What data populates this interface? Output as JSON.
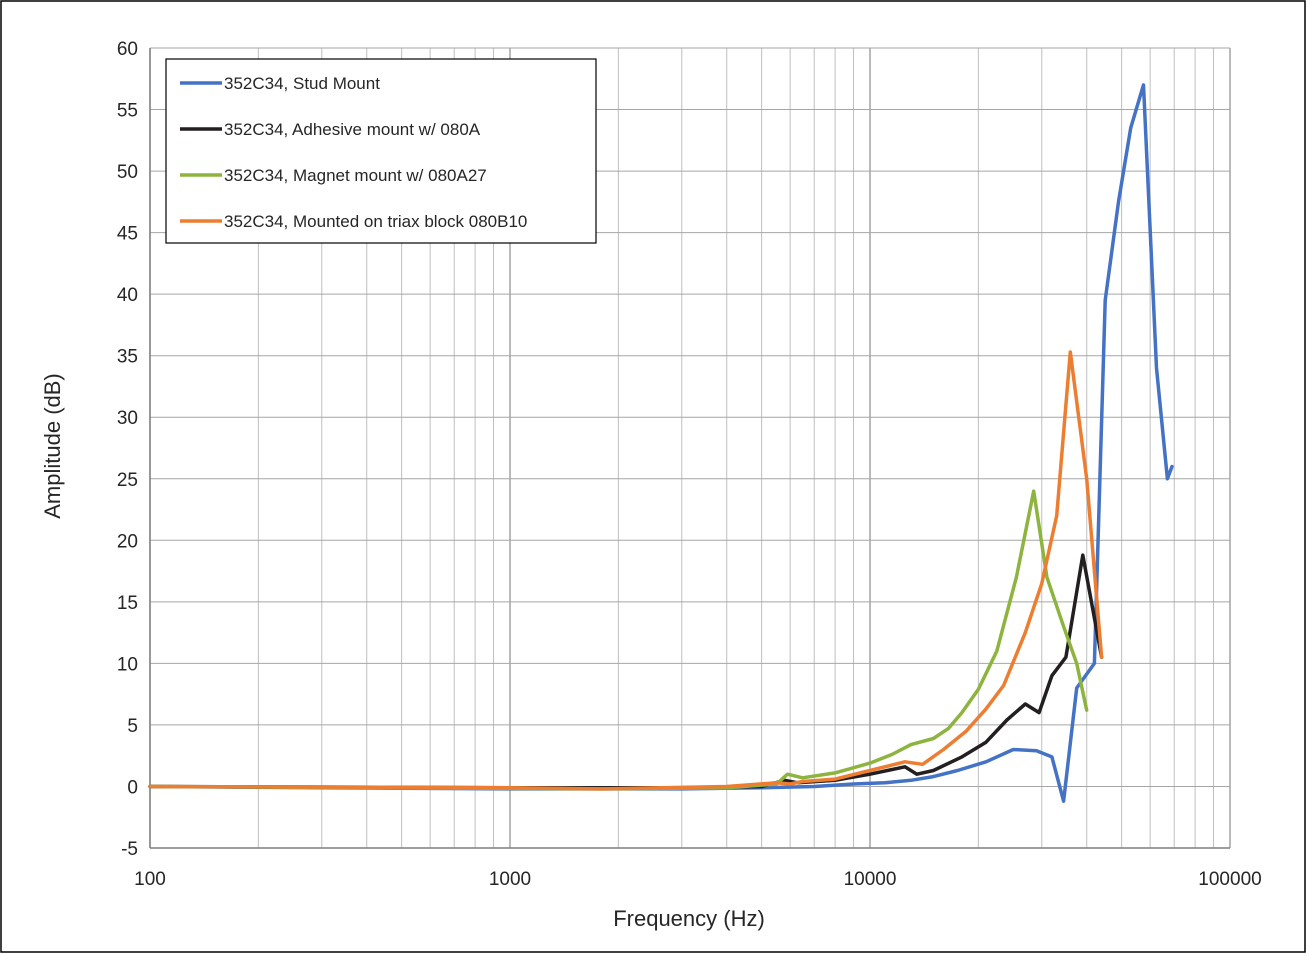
{
  "chart_data": {
    "type": "line",
    "xlabel": "Frequency (Hz)",
    "ylabel": "Amplitude (dB)",
    "x_scale": "log",
    "xlim": [
      100,
      100000
    ],
    "ylim": [
      -5,
      60
    ],
    "x_ticks": [
      100,
      1000,
      10000,
      100000
    ],
    "x_tick_labels": [
      "100",
      "1000",
      "10000",
      "100000"
    ],
    "y_ticks": [
      -5,
      0,
      5,
      10,
      15,
      20,
      25,
      30,
      35,
      40,
      45,
      50,
      55,
      60
    ],
    "y_tick_labels": [
      "-5",
      "0",
      "5",
      "10",
      "15",
      "20",
      "25",
      "30",
      "35",
      "40",
      "45",
      "50",
      "55",
      "60"
    ],
    "grid": true,
    "legend_position": "top-left",
    "series": [
      {
        "name": "352C34, Stud Mount",
        "color": "#4472C4",
        "points": [
          [
            100,
            0
          ],
          [
            300,
            -0.1
          ],
          [
            1000,
            -0.2
          ],
          [
            3000,
            -0.2
          ],
          [
            5000,
            -0.1
          ],
          [
            7000,
            0
          ],
          [
            9000,
            0.2
          ],
          [
            11000,
            0.3
          ],
          [
            13000,
            0.5
          ],
          [
            15000,
            0.8
          ],
          [
            17500,
            1.3
          ],
          [
            21000,
            2.0
          ],
          [
            25000,
            3.0
          ],
          [
            29000,
            2.9
          ],
          [
            32000,
            2.4
          ],
          [
            34500,
            -1.2
          ],
          [
            37500,
            8.0
          ],
          [
            42000,
            10.0
          ],
          [
            45000,
            39.5
          ],
          [
            49000,
            47.5
          ],
          [
            53000,
            53.5
          ],
          [
            57500,
            57.0
          ],
          [
            62500,
            34.0
          ],
          [
            67000,
            25.0
          ],
          [
            69000,
            26.0
          ]
        ]
      },
      {
        "name": "352C34, Adhesive mount w/ 080A",
        "color": "#231F20",
        "points": [
          [
            100,
            0
          ],
          [
            1000,
            -0.1
          ],
          [
            3000,
            -0.1
          ],
          [
            5000,
            0
          ],
          [
            5800,
            0.5
          ],
          [
            6300,
            0.3
          ],
          [
            8000,
            0.5
          ],
          [
            10000,
            1.0
          ],
          [
            12500,
            1.6
          ],
          [
            13500,
            1.0
          ],
          [
            15000,
            1.3
          ],
          [
            18000,
            2.4
          ],
          [
            21000,
            3.6
          ],
          [
            24000,
            5.4
          ],
          [
            27000,
            6.7
          ],
          [
            29500,
            6.0
          ],
          [
            32000,
            9.0
          ],
          [
            35000,
            10.5
          ],
          [
            39000,
            18.8
          ],
          [
            44000,
            10.5
          ]
        ]
      },
      {
        "name": "352C34, Magnet mount w/ 080A27",
        "color": "#8DB43E",
        "points": [
          [
            100,
            0
          ],
          [
            1800,
            -0.2
          ],
          [
            4000,
            -0.1
          ],
          [
            5500,
            0.2
          ],
          [
            5900,
            1.0
          ],
          [
            6500,
            0.7
          ],
          [
            8000,
            1.1
          ],
          [
            10000,
            1.9
          ],
          [
            11500,
            2.6
          ],
          [
            13000,
            3.4
          ],
          [
            15000,
            3.9
          ],
          [
            16500,
            4.7
          ],
          [
            18000,
            6.0
          ],
          [
            20000,
            7.9
          ],
          [
            22500,
            11.0
          ],
          [
            25500,
            17.0
          ],
          [
            28500,
            24.0
          ],
          [
            31000,
            17.0
          ],
          [
            34500,
            13.0
          ],
          [
            37500,
            10.0
          ],
          [
            40000,
            6.2
          ]
        ]
      },
      {
        "name": "352C34, Mounted on triax block 080B10",
        "color": "#ED7D31",
        "points": [
          [
            100,
            0
          ],
          [
            1000,
            -0.1
          ],
          [
            1800,
            -0.2
          ],
          [
            4000,
            0
          ],
          [
            5500,
            0.3
          ],
          [
            6000,
            0.2
          ],
          [
            6500,
            0.4
          ],
          [
            8000,
            0.6
          ],
          [
            10000,
            1.3
          ],
          [
            12500,
            2.0
          ],
          [
            14000,
            1.8
          ],
          [
            16000,
            3.0
          ],
          [
            18500,
            4.5
          ],
          [
            21000,
            6.3
          ],
          [
            23500,
            8.2
          ],
          [
            27000,
            12.5
          ],
          [
            30000,
            16.5
          ],
          [
            33000,
            22.0
          ],
          [
            36000,
            35.3
          ],
          [
            40000,
            25.0
          ],
          [
            44000,
            10.5
          ]
        ]
      }
    ]
  }
}
